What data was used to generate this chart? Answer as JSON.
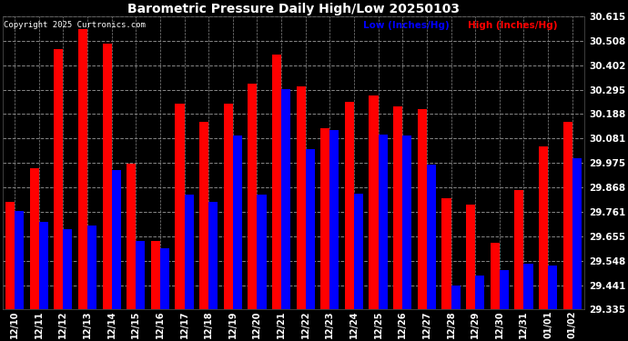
{
  "title": "Barometric Pressure Daily High/Low 20250103",
  "copyright": "Copyright 2025 Curtronics.com",
  "legend_low": "Low (Inches/Hg)",
  "legend_high": "High (Inches/Hg)",
  "categories": [
    "12/10",
    "12/11",
    "12/12",
    "12/13",
    "12/14",
    "12/15",
    "12/16",
    "12/17",
    "12/18",
    "12/19",
    "12/20",
    "12/21",
    "12/22",
    "12/23",
    "12/24",
    "12/25",
    "12/26",
    "12/27",
    "12/28",
    "12/29",
    "12/30",
    "12/31",
    "01/01",
    "01/02"
  ],
  "low_values": [
    29.765,
    29.716,
    29.687,
    29.703,
    29.942,
    29.633,
    29.601,
    29.836,
    29.805,
    30.095,
    29.836,
    30.298,
    30.034,
    30.118,
    29.839,
    30.099,
    30.095,
    29.967,
    29.44,
    29.482,
    29.505,
    29.535,
    29.525,
    29.996
  ],
  "high_values": [
    29.803,
    29.951,
    30.473,
    30.56,
    30.494,
    29.972,
    29.635,
    30.234,
    30.154,
    30.234,
    30.32,
    30.449,
    30.307,
    30.128,
    30.241,
    30.268,
    30.221,
    30.208,
    29.82,
    29.793,
    29.627,
    29.855,
    30.047,
    30.155
  ],
  "low_color": "#0000ff",
  "high_color": "#ff0000",
  "bg_color": "#000000",
  "plot_bg_color": "#000000",
  "grid_color": "#888888",
  "text_color": "#ffffff",
  "title_color": "#ffffff",
  "yticks": [
    29.335,
    29.441,
    29.548,
    29.655,
    29.761,
    29.868,
    29.975,
    30.081,
    30.188,
    30.295,
    30.402,
    30.508,
    30.615
  ],
  "ylim": [
    29.335,
    30.615
  ],
  "bar_width": 0.38
}
